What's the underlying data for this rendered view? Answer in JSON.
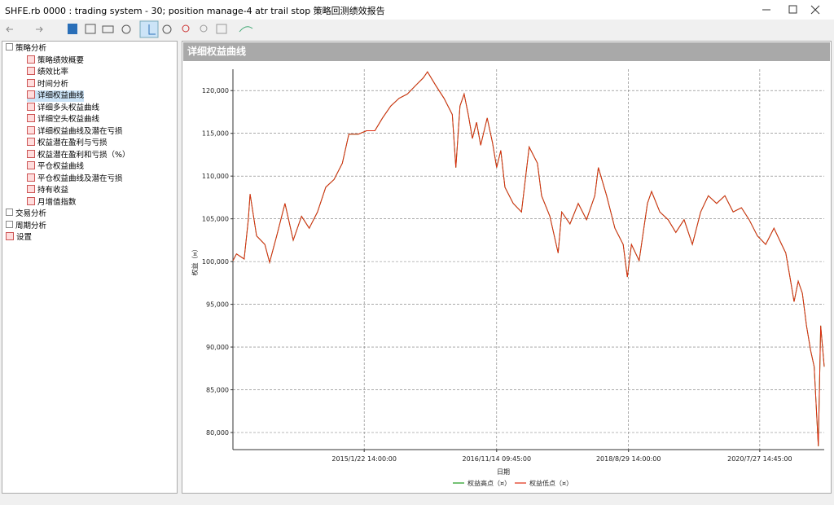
{
  "window": {
    "title": "SHFE.rb 0000 : trading system - 30; position manage-4 atr trail stop 策略回测绩效报告"
  },
  "tree": {
    "groups": [
      {
        "label": "策略分析",
        "items": [
          "策略绩效概要",
          "绩效比率",
          "时间分析",
          "详细权益曲线",
          "详细多头权益曲线",
          "详细空头权益曲线",
          "详细权益曲线及潜在亏损",
          "权益潜在盈利与亏损",
          "权益潜在盈利和亏损（%）",
          "平仓权益曲线",
          "平仓权益曲线及潜在亏损",
          "持有收益",
          "月增值指数"
        ]
      },
      {
        "label": "交易分析"
      },
      {
        "label": "周期分析"
      },
      {
        "label": "设置"
      }
    ]
  },
  "panel": {
    "title": "详细权益曲线"
  },
  "chart_data": {
    "type": "line",
    "y_label": "权益（¤）",
    "x_label": "日期",
    "xlim": [
      0,
      100
    ],
    "ylim": [
      78000,
      122500
    ],
    "xticks": [
      {
        "value": 22.2,
        "label": "2015/1/22 14:00:00"
      },
      {
        "value": 44.6,
        "label": "2016/11/14 09:45:00"
      },
      {
        "value": 66.9,
        "label": "2018/8/29 14:00:00"
      },
      {
        "value": 89.1,
        "label": "2020/7/27 14:45:00"
      }
    ],
    "yticks": [
      {
        "value": 80000,
        "label": "80,000"
      },
      {
        "value": 85000,
        "label": "85,000"
      },
      {
        "value": 90000,
        "label": "90,000"
      },
      {
        "value": 95000,
        "label": "95,000"
      },
      {
        "value": 100000,
        "label": "100,000"
      },
      {
        "value": 105000,
        "label": "105,000"
      },
      {
        "value": 110000,
        "label": "110,000"
      },
      {
        "value": 115000,
        "label": "115,000"
      },
      {
        "value": 120000,
        "label": "120,000"
      }
    ],
    "grid": true,
    "x": [
      0,
      0.6,
      1.9,
      2.6,
      2.9,
      4.0,
      5.4,
      6.2,
      7.4,
      8.8,
      10.2,
      11.6,
      12.9,
      14.3,
      15.7,
      17.1,
      18.5,
      19.6,
      21.2,
      22.6,
      24.0,
      25.3,
      26.7,
      28.1,
      29.5,
      30.9,
      32.2,
      32.9,
      34.3,
      35.7,
      37.1,
      37.7,
      38.4,
      39.1,
      39.8,
      40.5,
      41.2,
      41.9,
      43.0,
      43.9,
      44.6,
      45.3,
      46.0,
      47.4,
      48.8,
      50.1,
      51.5,
      52.2,
      53.6,
      55.0,
      55.6,
      57.0,
      58.4,
      59.8,
      61.2,
      61.8,
      63.2,
      64.6,
      66.0,
      66.7,
      67.4,
      68.7,
      70.1,
      70.8,
      72.2,
      73.6,
      74.9,
      76.3,
      77.7,
      79.1,
      80.4,
      81.8,
      83.2,
      84.6,
      86.0,
      87.3,
      88.7,
      90.1,
      91.5,
      92.8,
      93.5,
      94.2,
      94.9,
      95.6,
      96.3,
      97.0,
      97.7,
      98.3,
      99.0,
      99.4,
      100
    ],
    "series": [
      {
        "name": "权益高点（¤）",
        "color": "#1a9a1a",
        "values": [
          100100,
          100900,
          100300,
          104900,
          107900,
          103000,
          102000,
          99900,
          103000,
          106800,
          102500,
          105300,
          103900,
          105800,
          108700,
          109600,
          111500,
          114900,
          114900,
          115300,
          115300,
          116800,
          118200,
          119100,
          119600,
          120600,
          121500,
          122200,
          120600,
          119100,
          117200,
          111000,
          118200,
          119600,
          117200,
          114400,
          116300,
          113600,
          116800,
          113900,
          111000,
          113000,
          108700,
          106800,
          105800,
          113400,
          111500,
          107700,
          105300,
          101000,
          105800,
          104400,
          106800,
          104900,
          107700,
          111000,
          107700,
          103900,
          102000,
          98200,
          102000,
          100100,
          106800,
          108200,
          105800,
          104900,
          103400,
          104900,
          102000,
          105800,
          107700,
          106800,
          107700,
          105800,
          106300,
          104900,
          103000,
          102000,
          103900,
          102000,
          101000,
          98200,
          95300,
          97700,
          96300,
          92500,
          89600,
          87700,
          78400,
          92500,
          87700
        ]
      },
      {
        "name": "权益低点（¤）",
        "color": "#e02a10",
        "values": [
          100100,
          100900,
          100300,
          104900,
          107900,
          103000,
          102000,
          99900,
          103000,
          106800,
          102500,
          105300,
          103900,
          105800,
          108700,
          109600,
          111500,
          114900,
          114900,
          115300,
          115300,
          116800,
          118200,
          119100,
          119600,
          120600,
          121500,
          122200,
          120600,
          119100,
          117200,
          111000,
          118200,
          119600,
          117200,
          114400,
          116300,
          113600,
          116800,
          113900,
          111000,
          113000,
          108700,
          106800,
          105800,
          113400,
          111500,
          107700,
          105300,
          101000,
          105800,
          104400,
          106800,
          104900,
          107700,
          111000,
          107700,
          103900,
          102000,
          98200,
          102000,
          100100,
          106800,
          108200,
          105800,
          104900,
          103400,
          104900,
          102000,
          105800,
          107700,
          106800,
          107700,
          105800,
          106300,
          104900,
          103000,
          102000,
          103900,
          102000,
          101000,
          98200,
          95300,
          97700,
          96300,
          92500,
          89600,
          87700,
          78400,
          92500,
          87700
        ]
      }
    ]
  }
}
